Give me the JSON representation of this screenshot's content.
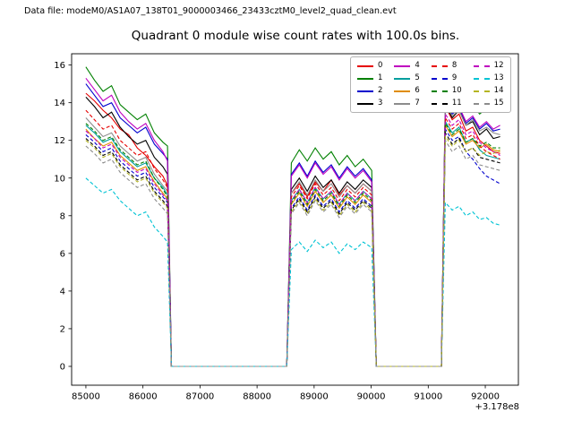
{
  "header": {
    "data_file": "Data file: modeM0/AS1A07_138T01_9000003466_23433cztM0_level2_quad_clean.evt"
  },
  "chart_data": {
    "type": "line",
    "title": "Quadrant 0 module wise count rates with 100.0s bins.",
    "xlabel": "",
    "ylabel": "",
    "x_offset_label": "+3.178e8",
    "x_ticks": [
      85000,
      86000,
      87000,
      88000,
      89000,
      90000,
      91000,
      92000
    ],
    "y_ticks": [
      0,
      2,
      4,
      6,
      8,
      10,
      12,
      14,
      16
    ],
    "xlim": [
      84750,
      92580
    ],
    "ylim": [
      -1.0,
      16.6
    ],
    "grid": false,
    "legend_position": "upper right",
    "legend_columns": 4,
    "x": [
      85000,
      85150,
      85300,
      85450,
      85600,
      85750,
      85900,
      86050,
      86200,
      86350,
      86430,
      86500,
      88520,
      88600,
      88740,
      88880,
      89020,
      89160,
      89300,
      89440,
      89580,
      89720,
      89860,
      90010,
      90090,
      91230,
      91300,
      91420,
      91540,
      91660,
      91780,
      91900,
      92020,
      92140,
      92260
    ],
    "series": [
      {
        "label": "0",
        "color": "#e60000",
        "dashed": false,
        "values": [
          14.5,
          14.1,
          13.6,
          13.2,
          12.6,
          12.3,
          11.6,
          11.2,
          10.6,
          10.1,
          9.6,
          0,
          0,
          9.2,
          9.7,
          9.0,
          9.8,
          9.3,
          9.9,
          9.1,
          9.6,
          9.2,
          9.7,
          9.3,
          0,
          0,
          13.8,
          13.1,
          13.4,
          12.5,
          12.7,
          12.0,
          11.7,
          11.4,
          11.3
        ]
      },
      {
        "label": "1",
        "color": "#008000",
        "dashed": false,
        "values": [
          15.9,
          15.2,
          14.6,
          14.9,
          13.9,
          13.5,
          13.1,
          13.4,
          12.4,
          11.9,
          11.7,
          0,
          0,
          10.8,
          11.5,
          10.9,
          11.6,
          11.0,
          11.4,
          10.7,
          11.2,
          10.6,
          11.0,
          10.4,
          0,
          0,
          14.5,
          13.9,
          14.2,
          13.6,
          13.9,
          13.4,
          13.7,
          13.5,
          13.6
        ]
      },
      {
        "label": "2",
        "color": "#0000cd",
        "dashed": false,
        "values": [
          15.0,
          14.4,
          13.8,
          14.0,
          13.2,
          12.8,
          12.4,
          12.7,
          11.8,
          11.3,
          11.0,
          0,
          0,
          10.2,
          10.8,
          10.1,
          10.9,
          10.3,
          10.7,
          10.0,
          10.6,
          10.1,
          10.5,
          9.9,
          0,
          0,
          14.0,
          13.4,
          13.7,
          12.9,
          13.2,
          12.6,
          12.9,
          12.5,
          12.6
        ]
      },
      {
        "label": "3",
        "color": "#000000",
        "dashed": false,
        "values": [
          14.3,
          13.8,
          13.2,
          13.5,
          12.7,
          12.2,
          11.8,
          12.0,
          11.1,
          10.6,
          10.2,
          0,
          0,
          9.4,
          10.0,
          9.3,
          10.1,
          9.5,
          9.9,
          9.2,
          9.8,
          9.4,
          9.9,
          9.5,
          0,
          0,
          13.9,
          13.2,
          13.6,
          12.8,
          13.0,
          12.3,
          12.6,
          12.1,
          12.2
        ]
      },
      {
        "label": "4",
        "color": "#bf00bf",
        "dashed": false,
        "values": [
          15.3,
          14.7,
          14.1,
          14.4,
          13.5,
          13.0,
          12.6,
          12.9,
          12.0,
          11.4,
          10.9,
          0,
          0,
          10.1,
          10.7,
          10.0,
          10.8,
          10.2,
          10.6,
          9.9,
          10.5,
          10.0,
          10.4,
          9.8,
          0,
          0,
          14.2,
          13.5,
          13.8,
          13.0,
          13.3,
          12.7,
          13.0,
          12.6,
          12.8
        ]
      },
      {
        "label": "5",
        "color": "#009e9e",
        "dashed": false,
        "values": [
          12.8,
          12.4,
          11.9,
          12.1,
          11.4,
          11.0,
          10.6,
          10.8,
          10.0,
          9.5,
          9.1,
          0,
          0,
          8.8,
          9.4,
          8.7,
          9.5,
          8.9,
          9.3,
          8.6,
          9.2,
          8.8,
          9.3,
          8.9,
          0,
          0,
          13.0,
          12.4,
          12.7,
          11.9,
          12.1,
          11.5,
          11.2,
          11.1,
          11.0
        ]
      },
      {
        "label": "6",
        "color": "#e08c00",
        "dashed": false,
        "values": [
          12.6,
          12.1,
          11.7,
          11.9,
          11.2,
          10.8,
          10.4,
          10.6,
          9.8,
          9.2,
          8.9,
          0,
          0,
          8.6,
          9.2,
          8.5,
          9.3,
          8.7,
          9.1,
          8.4,
          9.0,
          8.6,
          9.1,
          8.7,
          0,
          0,
          12.8,
          12.2,
          12.5,
          11.8,
          12.0,
          11.6,
          11.8,
          11.5,
          11.4
        ]
      },
      {
        "label": "7",
        "color": "#8c8c8c",
        "dashed": false,
        "values": [
          13.2,
          12.7,
          12.2,
          12.4,
          11.7,
          11.3,
          10.9,
          11.1,
          10.2,
          9.6,
          9.3,
          0,
          0,
          9.2,
          9.8,
          9.1,
          9.9,
          9.3,
          9.7,
          9.0,
          9.6,
          9.2,
          9.7,
          9.3,
          0,
          0,
          14.0,
          13.3,
          13.6,
          12.8,
          13.1,
          12.5,
          12.7,
          12.4,
          12.3
        ]
      },
      {
        "label": "8",
        "color": "#e60000",
        "dashed": true,
        "values": [
          13.6,
          13.1,
          12.6,
          12.8,
          12.0,
          11.6,
          11.2,
          11.4,
          10.5,
          9.9,
          9.5,
          0,
          0,
          9.0,
          9.6,
          8.9,
          9.7,
          9.1,
          9.5,
          8.8,
          9.4,
          9.0,
          9.5,
          9.1,
          0,
          0,
          13.2,
          12.6,
          12.9,
          12.1,
          12.3,
          11.7,
          11.4,
          11.2,
          11.0
        ]
      },
      {
        "label": "9",
        "color": "#0000cd",
        "dashed": true,
        "values": [
          12.3,
          11.9,
          11.4,
          11.6,
          10.9,
          10.5,
          10.1,
          10.3,
          9.5,
          9.0,
          8.7,
          0,
          0,
          8.4,
          9.0,
          8.3,
          9.1,
          8.5,
          8.9,
          8.2,
          8.8,
          8.4,
          8.9,
          8.5,
          0,
          0,
          12.6,
          12.0,
          12.2,
          11.4,
          11.0,
          10.5,
          10.1,
          9.9,
          9.7
        ]
      },
      {
        "label": "10",
        "color": "#008000",
        "dashed": true,
        "values": [
          12.9,
          12.5,
          12.0,
          12.2,
          11.5,
          11.1,
          10.7,
          10.9,
          10.0,
          9.4,
          9.0,
          0,
          0,
          8.7,
          9.3,
          8.6,
          9.4,
          8.8,
          9.2,
          8.5,
          9.1,
          8.7,
          9.2,
          8.8,
          0,
          0,
          12.9,
          12.3,
          12.6,
          11.9,
          12.1,
          11.7,
          11.9,
          11.6,
          11.6
        ]
      },
      {
        "label": "11",
        "color": "#000000",
        "dashed": true,
        "values": [
          12.1,
          11.7,
          11.2,
          11.4,
          10.7,
          10.3,
          9.9,
          10.1,
          9.3,
          8.8,
          8.5,
          0,
          0,
          8.3,
          8.9,
          8.2,
          9.0,
          8.4,
          8.8,
          8.1,
          8.7,
          8.3,
          8.8,
          8.4,
          0,
          0,
          12.4,
          11.8,
          12.1,
          11.4,
          11.6,
          11.1,
          11.0,
          10.9,
          10.8
        ]
      },
      {
        "label": "12",
        "color": "#bf00bf",
        "dashed": true,
        "values": [
          12.5,
          12.1,
          11.6,
          11.8,
          11.1,
          10.7,
          10.3,
          10.5,
          9.7,
          9.1,
          8.8,
          0,
          0,
          8.8,
          9.4,
          8.7,
          9.5,
          8.9,
          9.3,
          8.6,
          9.2,
          8.8,
          9.3,
          8.9,
          0,
          0,
          13.4,
          12.8,
          13.1,
          12.3,
          12.5,
          11.9,
          11.6,
          11.4,
          11.2
        ]
      },
      {
        "label": "13",
        "color": "#00c3d4",
        "dashed": true,
        "values": [
          10.0,
          9.6,
          9.2,
          9.4,
          8.8,
          8.4,
          8.0,
          8.2,
          7.4,
          6.9,
          6.6,
          0,
          0,
          6.2,
          6.6,
          6.1,
          6.7,
          6.3,
          6.6,
          6.0,
          6.5,
          6.2,
          6.6,
          6.3,
          0,
          0,
          8.7,
          8.3,
          8.5,
          8.0,
          8.2,
          7.8,
          7.9,
          7.6,
          7.5
        ]
      },
      {
        "label": "14",
        "color": "#b5b521",
        "dashed": true,
        "values": [
          12.0,
          11.6,
          11.1,
          11.3,
          10.6,
          10.2,
          9.8,
          10.0,
          9.2,
          8.7,
          8.4,
          0,
          0,
          8.2,
          8.8,
          8.1,
          8.9,
          8.3,
          8.7,
          8.0,
          8.6,
          8.2,
          8.7,
          8.3,
          0,
          0,
          12.2,
          11.7,
          12.0,
          11.4,
          11.6,
          11.2,
          11.4,
          11.3,
          11.5
        ]
      },
      {
        "label": "15",
        "color": "#8c8c8c",
        "dashed": true,
        "values": [
          11.7,
          11.3,
          10.8,
          11.0,
          10.3,
          9.9,
          9.5,
          9.7,
          8.9,
          8.4,
          8.1,
          0,
          0,
          8.1,
          8.7,
          8.0,
          8.8,
          8.2,
          8.6,
          7.9,
          8.5,
          8.1,
          8.6,
          8.2,
          0,
          0,
          12.0,
          11.4,
          11.7,
          11.0,
          11.2,
          10.7,
          10.6,
          10.5,
          10.4
        ]
      }
    ]
  }
}
